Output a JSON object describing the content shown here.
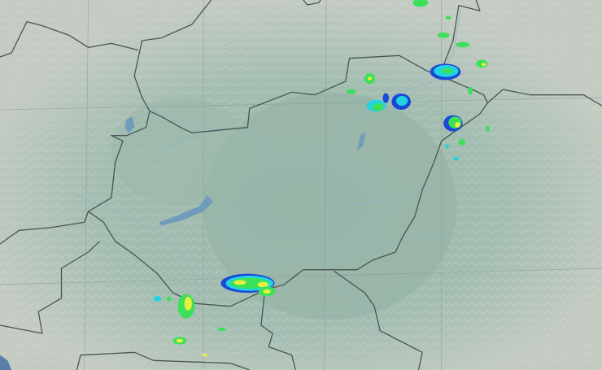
{
  "map": {
    "type": "weather-radar",
    "colors": {
      "plain": "#9bb8ab",
      "mountains": "#c9cfc7",
      "water": "#6f9bbd",
      "border": "#4a5552",
      "radar_low": "#1a49d8",
      "radar_mid": "#22d3e0",
      "radar_high": "#3de05a",
      "radar_peak": "#e4f03c"
    }
  }
}
